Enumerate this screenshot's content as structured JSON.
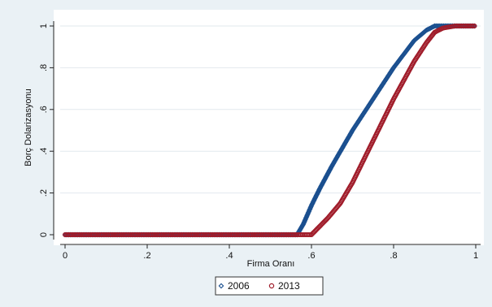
{
  "colors": {
    "outer_background": "#eaf1f5",
    "plot_background": "#ffffff",
    "series_2006": "#1a4f8f",
    "series_2013": "#a01c2a",
    "axis": "#222222"
  },
  "chart_data": {
    "type": "scatter",
    "xlabel": "Firma Oranı",
    "ylabel": "Borç Dolarizasyonu",
    "xlim": [
      0,
      1
    ],
    "ylim": [
      0,
      1
    ],
    "x_ticks": [
      0,
      0.2,
      0.4,
      0.6,
      0.8,
      1
    ],
    "x_tick_labels": [
      "0",
      ".2",
      ".4",
      ".6",
      ".8",
      "1"
    ],
    "y_ticks": [
      0,
      0.2,
      0.4,
      0.6,
      0.8,
      1
    ],
    "y_tick_labels": [
      "0",
      ".2",
      ".4",
      ".6",
      ".8",
      "1"
    ],
    "grid": "horizontal",
    "legend_position": "bottom",
    "series": [
      {
        "name": "2006",
        "marker": "diamond",
        "color_key": "series_2006",
        "points": [
          [
            0,
            0
          ],
          [
            0.2,
            0
          ],
          [
            0.4,
            0
          ],
          [
            0.5,
            0
          ],
          [
            0.565,
            0
          ],
          [
            0.58,
            0.05
          ],
          [
            0.6,
            0.14
          ],
          [
            0.62,
            0.22
          ],
          [
            0.65,
            0.33
          ],
          [
            0.7,
            0.5
          ],
          [
            0.75,
            0.65
          ],
          [
            0.8,
            0.8
          ],
          [
            0.85,
            0.93
          ],
          [
            0.88,
            0.98
          ],
          [
            0.9,
            1.0
          ],
          [
            0.95,
            1.0
          ],
          [
            1.0,
            1.0
          ]
        ]
      },
      {
        "name": "2013",
        "marker": "circle",
        "color_key": "series_2013",
        "points": [
          [
            0,
            0
          ],
          [
            0.2,
            0
          ],
          [
            0.4,
            0
          ],
          [
            0.5,
            0
          ],
          [
            0.6,
            0
          ],
          [
            0.615,
            0.03
          ],
          [
            0.64,
            0.08
          ],
          [
            0.67,
            0.15
          ],
          [
            0.7,
            0.25
          ],
          [
            0.75,
            0.45
          ],
          [
            0.8,
            0.65
          ],
          [
            0.85,
            0.83
          ],
          [
            0.88,
            0.92
          ],
          [
            0.9,
            0.97
          ],
          [
            0.92,
            0.99
          ],
          [
            0.95,
            1.0
          ],
          [
            1.0,
            1.0
          ]
        ]
      }
    ]
  }
}
